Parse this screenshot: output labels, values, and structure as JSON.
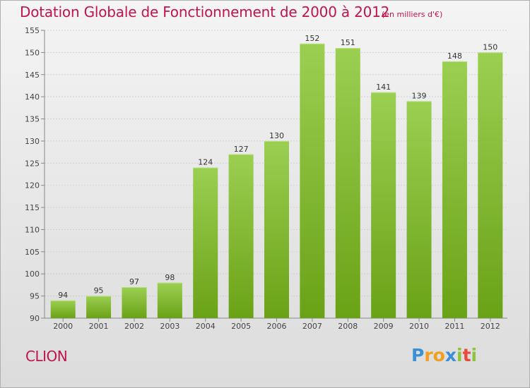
{
  "title": "Dotation Globale de Fonctionnement de 2000 à 2012",
  "subtitle": "(en milliers d'€)",
  "city": "CLION",
  "logo": {
    "letters": [
      "P",
      "r",
      "o",
      "x",
      "i",
      "t",
      "i"
    ],
    "colors": [
      "#3b8fd6",
      "#f0a020",
      "#f0a020",
      "#3b8fd6",
      "#8cc43c",
      "#e84a3c",
      "#8cc43c"
    ]
  },
  "colors": {
    "bar_light": "#9bcf52",
    "bar_dark": "#6aa216",
    "title": "#c0144c"
  },
  "chart_data": {
    "type": "bar",
    "categories": [
      "2000",
      "2001",
      "2002",
      "2003",
      "2004",
      "2005",
      "2006",
      "2007",
      "2008",
      "2009",
      "2010",
      "2011",
      "2012"
    ],
    "values": [
      94,
      95,
      97,
      98,
      124,
      127,
      130,
      152,
      151,
      141,
      139,
      148,
      150
    ],
    "ylim": [
      90,
      155
    ],
    "yticks": [
      90,
      95,
      100,
      105,
      110,
      115,
      120,
      125,
      130,
      135,
      140,
      145,
      150,
      155
    ],
    "grid": true,
    "title": "Dotation Globale de Fonctionnement de 2000 à 2012",
    "xlabel": "",
    "ylabel": ""
  }
}
